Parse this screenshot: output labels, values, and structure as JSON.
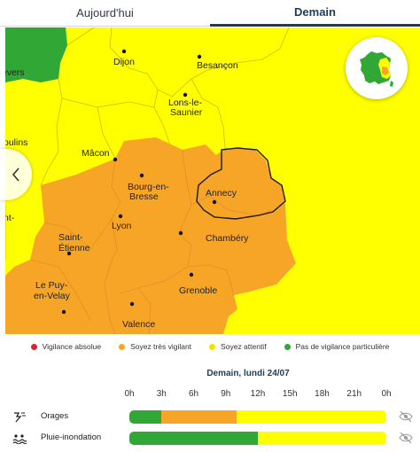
{
  "tabs": [
    {
      "label": "Aujourd'hui",
      "active": false
    },
    {
      "label": "Demain",
      "active": true
    }
  ],
  "cities": {
    "nevers": "evers",
    "dijon": "Dijon",
    "besancon": "Besançon",
    "lons_line1": "Lons-le-",
    "lons_line2": "Saunier",
    "moulins": "oulins",
    "macon": "Mâcon",
    "bourg_line1": "Bourg-en-",
    "bourg_line2": "Bresse",
    "annecy": "Annecy",
    "lyon": "Lyon",
    "chambery": "Chambéry",
    "saint_etienne_line1": "Saint-",
    "saint_etienne_line2": "Étienne",
    "puy_line1": "Le Puy-",
    "puy_line2": "en-Velay",
    "grenoble": "Grenoble",
    "valence": "Valence",
    "left_edge": "nt-"
  },
  "colors": {
    "red": "#d8262a",
    "orange": "#f7a527",
    "yellow": "#ffff00",
    "green": "#31a836"
  },
  "legend": [
    {
      "label": "Vigilance absolue",
      "color": "#d8262a"
    },
    {
      "label": "Soyez très vigilant",
      "color": "#f7a527"
    },
    {
      "label": "Soyez attentif",
      "color": "#ffff00"
    },
    {
      "label": "Pas de vigilance particulière",
      "color": "#31a836"
    }
  ],
  "timeline": {
    "title": "Demain, lundi 24/07",
    "hours": [
      "0h",
      "3h",
      "6h",
      "9h",
      "12h",
      "15h",
      "18h",
      "21h",
      "0h"
    ],
    "rows": [
      {
        "label": "Orages",
        "icon": "storm-icon",
        "segments": [
          {
            "from_hour": 0,
            "to_hour": 3,
            "level": "green"
          },
          {
            "from_hour": 3,
            "to_hour": 10,
            "level": "orange"
          },
          {
            "from_hour": 10,
            "to_hour": 24,
            "level": "yellow"
          }
        ]
      },
      {
        "label": "Pluie-inondation",
        "icon": "rain-flood-icon",
        "segments": [
          {
            "from_hour": 0,
            "to_hour": 12,
            "level": "green"
          },
          {
            "from_hour": 12,
            "to_hour": 24,
            "level": "yellow"
          }
        ]
      }
    ]
  },
  "icons": {
    "nav_prev": "chevron-left-icon",
    "mini_map": "france-minimap-icon",
    "visibility": "eye-slash-icon"
  }
}
